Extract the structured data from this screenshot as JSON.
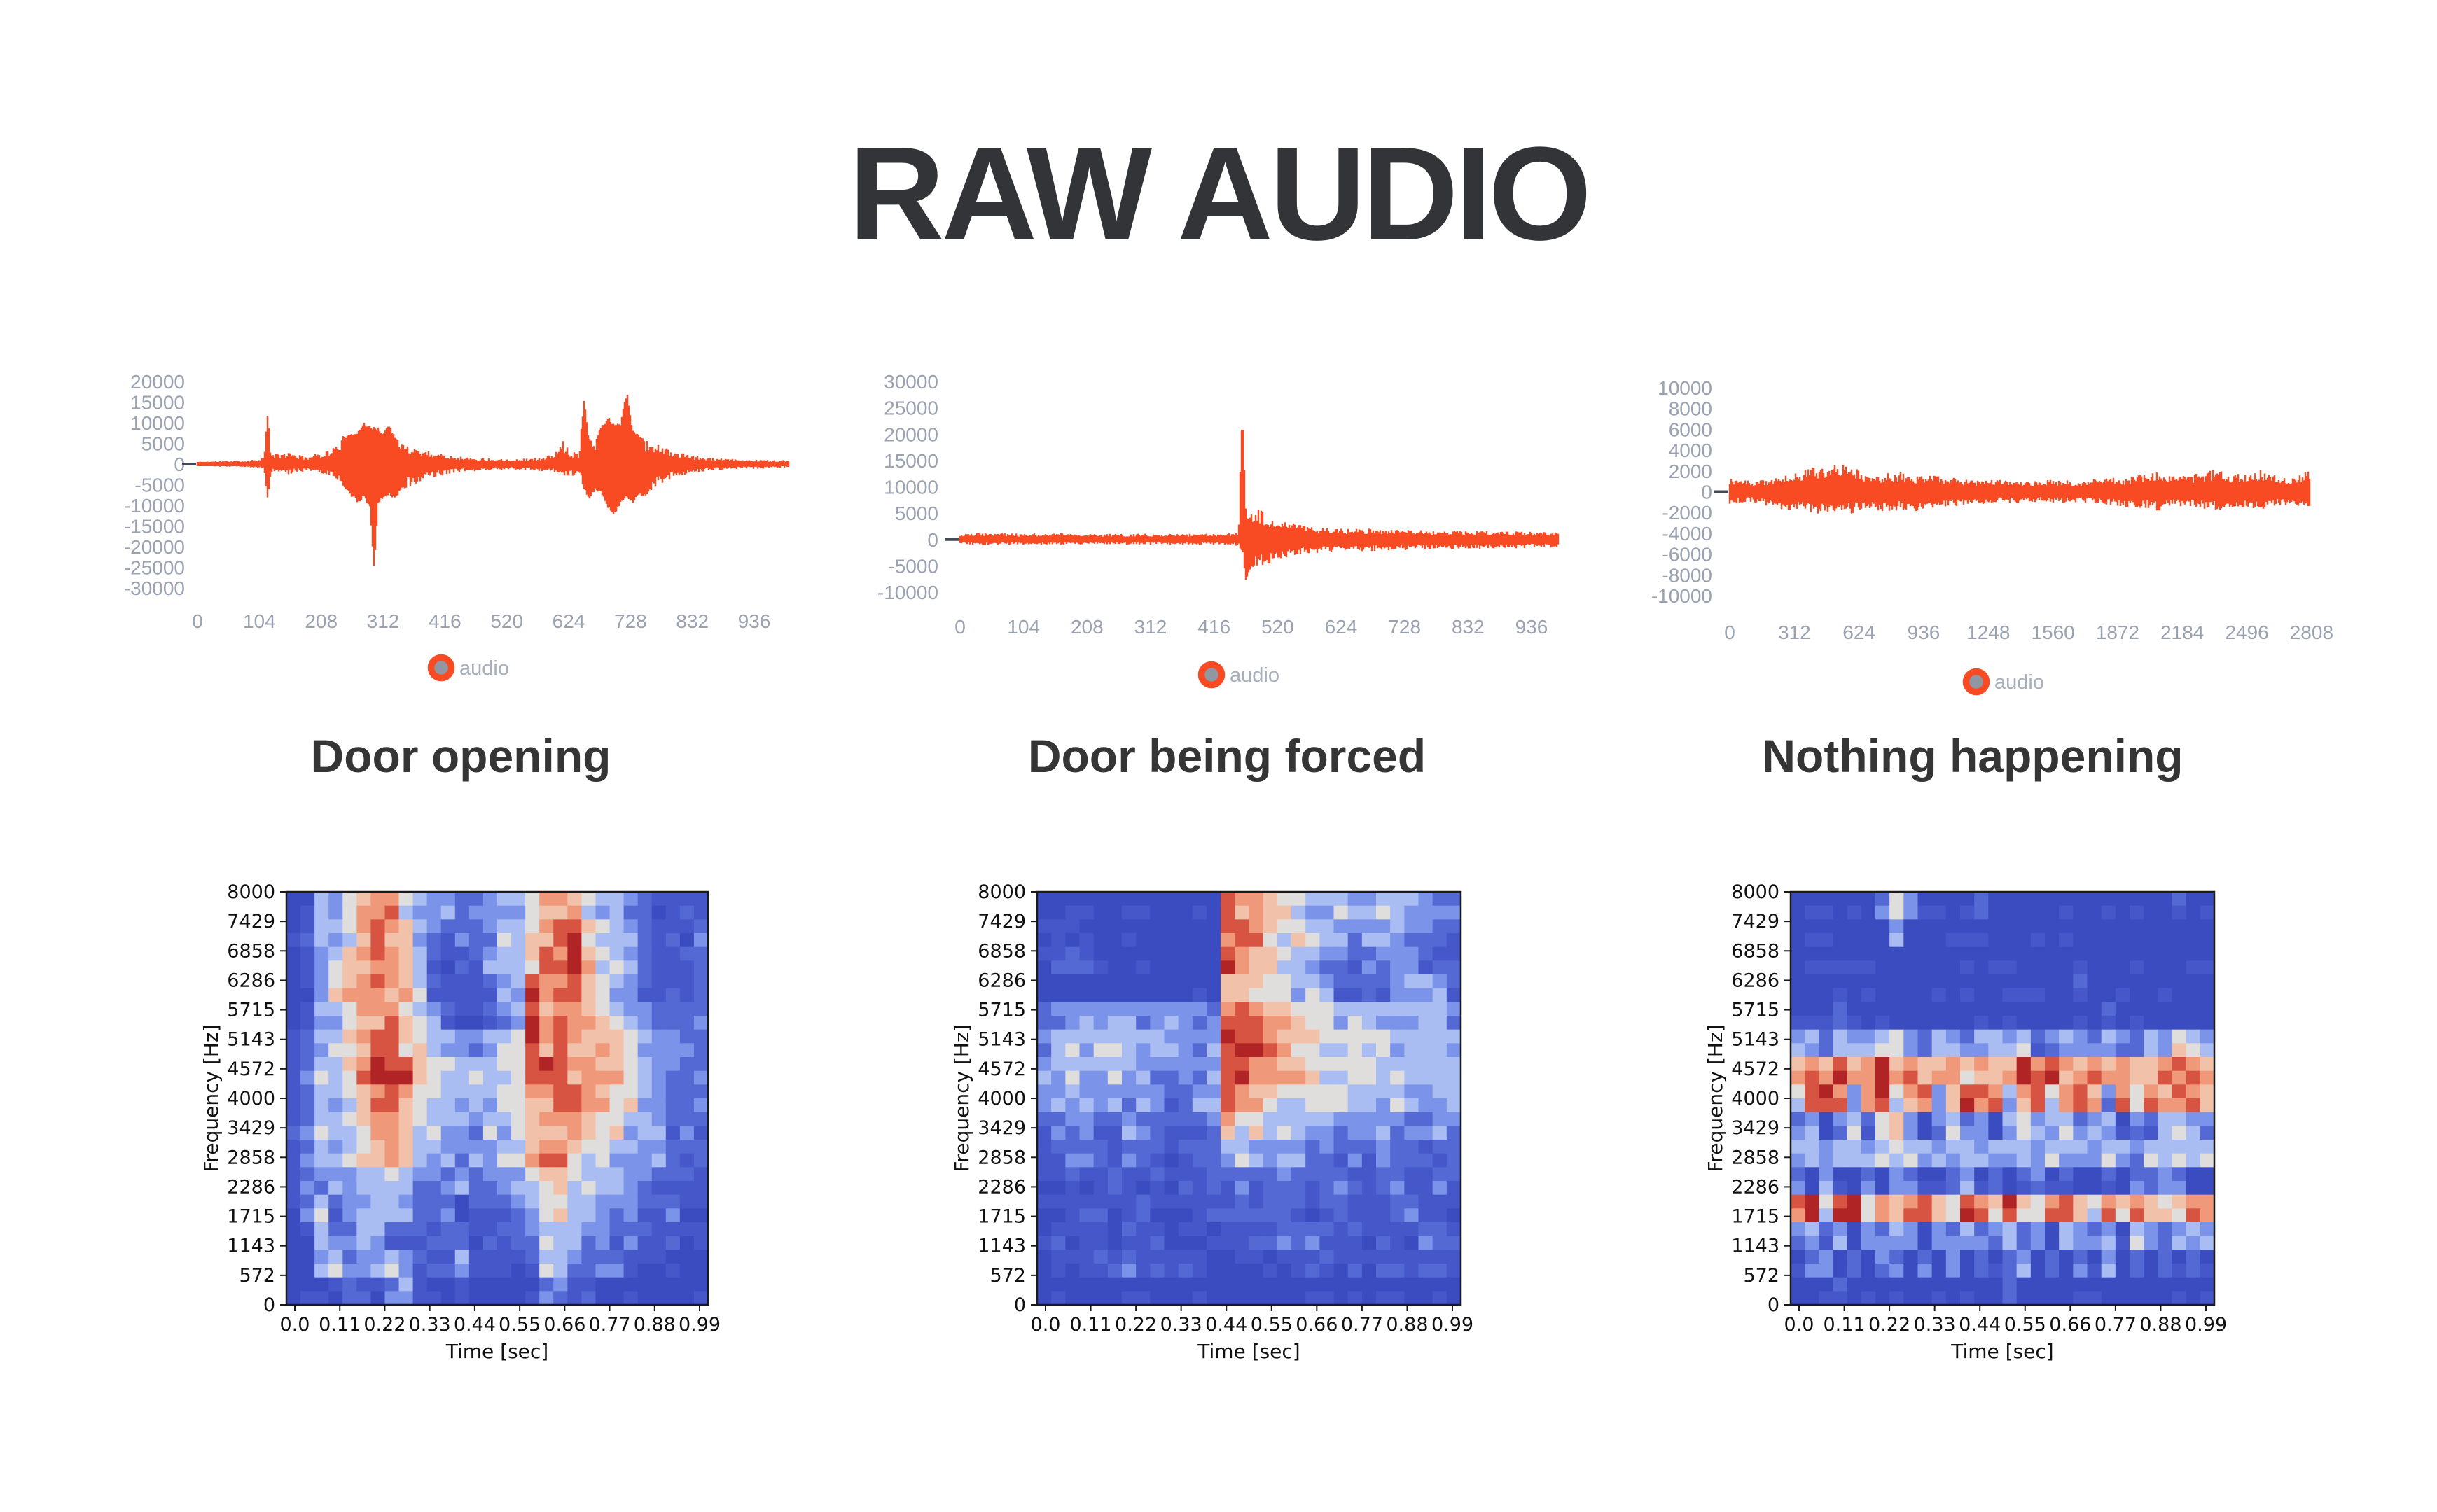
{
  "title": "RAW AUDIO",
  "sections": [
    {
      "label": "Door opening",
      "legend_label": "audio"
    },
    {
      "label": "Door being forced",
      "legend_label": "audio"
    },
    {
      "label": "Nothing happening",
      "legend_label": "audio"
    }
  ],
  "colors": {
    "waveform": "#f94b23",
    "legend_ring": "#f94b23",
    "legend_fill": "#9196a3",
    "tick_label": "#9aa2b1",
    "legend_text": "#a7afbd",
    "section_label": "#353535",
    "title": "#333437",
    "spect_frame": "#1a1a1a",
    "spect_text": "#111111",
    "spect_palette": [
      "#3b4cc0",
      "#4557c9",
      "#5569d4",
      "#7b93e8",
      "#aabdf2",
      "#e0dedd",
      "#f2c1a9",
      "#f0997a",
      "#d85442",
      "#b02425"
    ]
  },
  "chart_data": {
    "waveforms": [
      {
        "type": "line",
        "name": "door-opening-raw-audio",
        "legend": [
          "audio"
        ],
        "x_ticks": [
          0,
          104,
          208,
          312,
          416,
          520,
          624,
          728,
          832,
          936
        ],
        "y_ticks": [
          20000,
          15000,
          10000,
          5000,
          0,
          -5000,
          -10000,
          -15000,
          -20000,
          -25000,
          -30000
        ],
        "xlim": [
          0,
          995
        ],
        "ylim": [
          -30000,
          20000
        ],
        "envelope": [
          [
            0,
            600,
            500
          ],
          [
            40,
            800,
            650
          ],
          [
            80,
            900,
            750
          ],
          [
            100,
            1200,
            900
          ],
          [
            112,
            2000,
            1500
          ],
          [
            118,
            12600,
            8700
          ],
          [
            124,
            2500,
            2000
          ],
          [
            140,
            2600,
            2200
          ],
          [
            155,
            3000,
            2600
          ],
          [
            170,
            2200,
            1900
          ],
          [
            185,
            2000,
            1800
          ],
          [
            200,
            2600,
            2100
          ],
          [
            215,
            3200,
            2700
          ],
          [
            230,
            4200,
            3600
          ],
          [
            245,
            6800,
            5600
          ],
          [
            258,
            7200,
            7800
          ],
          [
            270,
            8200,
            9500
          ],
          [
            280,
            10600,
            8200
          ],
          [
            290,
            9200,
            11000
          ],
          [
            297,
            9000,
            27200
          ],
          [
            304,
            9200,
            9800
          ],
          [
            312,
            7400,
            8400
          ],
          [
            322,
            10200,
            7600
          ],
          [
            332,
            6400,
            8600
          ],
          [
            342,
            5600,
            6400
          ],
          [
            355,
            4800,
            5600
          ],
          [
            370,
            4000,
            4600
          ],
          [
            385,
            3400,
            3800
          ],
          [
            400,
            2900,
            3200
          ],
          [
            420,
            2400,
            2600
          ],
          [
            445,
            1800,
            2000
          ],
          [
            475,
            1500,
            1650
          ],
          [
            510,
            1350,
            1500
          ],
          [
            545,
            1300,
            1400
          ],
          [
            575,
            1600,
            1700
          ],
          [
            600,
            2400,
            2100
          ],
          [
            614,
            5800,
            3600
          ],
          [
            628,
            3200,
            3000
          ],
          [
            641,
            2800,
            2600
          ],
          [
            650,
            16300,
            6200
          ],
          [
            658,
            6400,
            8800
          ],
          [
            668,
            5400,
            6400
          ],
          [
            678,
            9200,
            7200
          ],
          [
            690,
            11800,
            10800
          ],
          [
            700,
            9800,
            13400
          ],
          [
            711,
            10200,
            9400
          ],
          [
            722,
            18800,
            8200
          ],
          [
            731,
            8400,
            9800
          ],
          [
            742,
            7400,
            7800
          ],
          [
            753,
            5800,
            8000
          ],
          [
            766,
            5400,
            5800
          ],
          [
            780,
            4400,
            4700
          ],
          [
            800,
            3200,
            3400
          ],
          [
            822,
            2400,
            2600
          ],
          [
            845,
            1800,
            1900
          ],
          [
            875,
            1400,
            1500
          ],
          [
            910,
            1150,
            1250
          ],
          [
            950,
            1050,
            1100
          ],
          [
            995,
            900,
            850
          ]
        ]
      },
      {
        "type": "line",
        "name": "door-being-forced-raw-audio",
        "legend": [
          "audio"
        ],
        "x_ticks": [
          0,
          104,
          208,
          312,
          416,
          520,
          624,
          728,
          832,
          936
        ],
        "y_ticks": [
          30000,
          25000,
          20000,
          15000,
          10000,
          5000,
          0,
          -5000,
          -10000
        ],
        "xlim": [
          0,
          980
        ],
        "ylim": [
          -10000,
          30000
        ],
        "envelope": [
          [
            0,
            900,
            800
          ],
          [
            30,
            1300,
            1100
          ],
          [
            60,
            1200,
            1050
          ],
          [
            100,
            1100,
            950
          ],
          [
            140,
            1200,
            1000
          ],
          [
            180,
            1150,
            1000
          ],
          [
            220,
            1100,
            950
          ],
          [
            260,
            1050,
            950
          ],
          [
            300,
            1100,
            1000
          ],
          [
            340,
            1050,
            950
          ],
          [
            380,
            1100,
            1000
          ],
          [
            420,
            1150,
            1000
          ],
          [
            448,
            1300,
            1100
          ],
          [
            456,
            1500,
            1300
          ],
          [
            462,
            26300,
            2500
          ],
          [
            468,
            6000,
            8200
          ],
          [
            475,
            5200,
            6200
          ],
          [
            482,
            4400,
            5400
          ],
          [
            490,
            6100,
            5000
          ],
          [
            500,
            4600,
            5600
          ],
          [
            510,
            3800,
            4600
          ],
          [
            522,
            3400,
            4000
          ],
          [
            535,
            4000,
            3400
          ],
          [
            550,
            2900,
            3200
          ],
          [
            570,
            2500,
            2800
          ],
          [
            590,
            2300,
            2500
          ],
          [
            615,
            2100,
            2300
          ],
          [
            640,
            2000,
            2200
          ],
          [
            670,
            2100,
            2200
          ],
          [
            700,
            1900,
            2100
          ],
          [
            740,
            1800,
            2000
          ],
          [
            780,
            1700,
            1900
          ],
          [
            820,
            1700,
            1800
          ],
          [
            860,
            1600,
            1750
          ],
          [
            900,
            1550,
            1700
          ],
          [
            940,
            1500,
            1600
          ],
          [
            980,
            1400,
            1500
          ]
        ]
      },
      {
        "type": "line",
        "name": "nothing-happening-raw-audio",
        "legend": [
          "audio"
        ],
        "x_ticks": [
          0,
          312,
          624,
          936,
          1248,
          1560,
          1872,
          2184,
          2496,
          2808
        ],
        "y_ticks": [
          10000,
          8000,
          6000,
          4000,
          2000,
          0,
          -2000,
          -4000,
          -6000,
          -8000,
          -10000
        ],
        "xlim": [
          0,
          2800
        ],
        "ylim": [
          -10000,
          10000
        ],
        "envelope": [
          [
            0,
            1400,
            1200
          ],
          [
            100,
            1100,
            1000
          ],
          [
            200,
            1300,
            1500
          ],
          [
            300,
            1700,
            1900
          ],
          [
            350,
            2100,
            1800
          ],
          [
            400,
            2400,
            2100
          ],
          [
            450,
            2600,
            2300
          ],
          [
            480,
            2200,
            2000
          ],
          [
            520,
            2700,
            1900
          ],
          [
            560,
            3400,
            2200
          ],
          [
            590,
            2400,
            2100
          ],
          [
            630,
            2100,
            1900
          ],
          [
            700,
            1500,
            1700
          ],
          [
            760,
            1800,
            2100
          ],
          [
            820,
            1900,
            1700
          ],
          [
            880,
            1500,
            1800
          ],
          [
            940,
            1700,
            2200
          ],
          [
            1000,
            1500,
            1600
          ],
          [
            1100,
            1300,
            1400
          ],
          [
            1200,
            1100,
            1200
          ],
          [
            1300,
            1200,
            1100
          ],
          [
            1400,
            1000,
            1100
          ],
          [
            1500,
            1100,
            1000
          ],
          [
            1600,
            1200,
            1100
          ],
          [
            1700,
            1000,
            1050
          ],
          [
            1800,
            1400,
            1200
          ],
          [
            1900,
            1300,
            1500
          ],
          [
            2000,
            1800,
            1600
          ],
          [
            2060,
            2100,
            1900
          ],
          [
            2120,
            1600,
            1500
          ],
          [
            2200,
            1500,
            1400
          ],
          [
            2300,
            2000,
            1700
          ],
          [
            2360,
            2200,
            1800
          ],
          [
            2430,
            1700,
            1500
          ],
          [
            2500,
            1900,
            1600
          ],
          [
            2570,
            2100,
            1700
          ],
          [
            2640,
            1500,
            1400
          ],
          [
            2700,
            1300,
            1300
          ],
          [
            2760,
            1800,
            1500
          ],
          [
            2800,
            2000,
            1400
          ]
        ]
      }
    ],
    "spectrograms": [
      {
        "type": "heatmap",
        "name": "door-opening-spectrogram",
        "xlabel": "Time [sec]",
        "ylabel": "Frequency [Hz]",
        "x_ticks": [
          "0.0",
          "0.11",
          "0.22",
          "0.33",
          "0.44",
          "0.55",
          "0.66",
          "0.77",
          "0.88",
          "0.99"
        ],
        "y_ticks": [
          8000,
          7429,
          6858,
          6286,
          5715,
          5143,
          4572,
          4000,
          3429,
          2858,
          2286,
          1715,
          1143,
          572,
          0
        ],
        "colormap": "coolwarm",
        "values": [
          "004356775433223445776544321111",
          "014457876432223445788654321112",
          "013467876421123446879654321122",
          "013567876421112348778654321112",
          "014457775432112348677654332222",
          "124467886544334459787666543322",
          "124467988655444558987766543322",
          "124456787554444557788765543222",
          "124456776544434456777655443222",
          "124345676443333446776554433222",
          "123334454332323335665444332221",
          "124233443222022234554433322211",
          "014224422212211223444332221111",
          "003423343211411112443222111000",
          "000121124100100000231100000000"
        ]
      },
      {
        "type": "heatmap",
        "name": "door-being-forced-spectrogram",
        "xlabel": "Time [sec]",
        "ylabel": "Frequency [Hz]",
        "x_ticks": [
          "0.0",
          "0.11",
          "0.22",
          "0.33",
          "0.44",
          "0.55",
          "0.66",
          "0.77",
          "0.88",
          "0.99"
        ],
        "y_ticks": [
          8000,
          7429,
          6858,
          6286,
          5715,
          5143,
          4572,
          4000,
          3429,
          2858,
          2286,
          1715,
          1143,
          572,
          0
        ],
        "colormap": "coolwarm",
        "values": [
          "000000000000087765544433444322",
          "111000000000088765544333343322",
          "112100000000087665443322333211",
          "000000000000066655443222234432",
          "233333333333278766555444444443",
          "344444444333398876665555544444",
          "344444433333388776655555444444",
          "334333333223387665555544443344",
          "223322322222375544444333332233",
          "122221222122244333323222322122",
          "112112112111222223222211221122",
          "111111121111112122212211122111",
          "011110211011011112222121111221",
          "011121211111001101112111111111",
          "000000000000000000000000000000"
        ]
      },
      {
        "type": "heatmap",
        "name": "nothing-happening-spectrogram",
        "xlabel": "Time [sec]",
        "ylabel": "Frequency [Hz]",
        "x_ticks": [
          "0.0",
          "0.11",
          "0.22",
          "0.33",
          "0.44",
          "0.55",
          "0.66",
          "0.77",
          "0.88",
          "0.99"
        ],
        "y_ticks": [
          8000,
          7429,
          6858,
          6286,
          5715,
          5143,
          4572,
          4000,
          3429,
          2858,
          2286,
          1715,
          1143,
          572,
          0
        ],
        "colormap": "coolwarm",
        "values": [
          "000000253000020000000000000200",
          "000000030000000000000000000000",
          "000000000000000000000000000000",
          "000000000000000000002000000000",
          "000200000000000000000020000000",
          "342433453243244342343243243543",
          "676867967667676697876767667876",
          "589737957836887478578637576876",
          "230342563034230453442340324433",
          "443443454434434443444344344444",
          "203002032002302023020020223200",
          "895895767865876965786576765677",
          "342303243032423423043230432343",
          "023020320203020230202030202020",
          "000200000000000200000000000000"
        ]
      }
    ]
  }
}
